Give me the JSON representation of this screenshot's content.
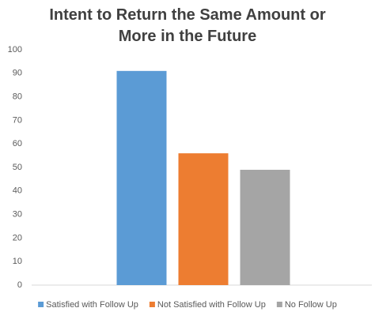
{
  "chart_data": {
    "type": "bar",
    "title": "Intent to Return the Same Amount or More in the Future",
    "categories": [
      null
    ],
    "series": [
      {
        "name": "Satisfied with Follow Up",
        "color": "#5b9bd5",
        "values": [
          91
        ]
      },
      {
        "name": "Not Satisfied with Follow Up",
        "color": "#ed7d31",
        "values": [
          56
        ]
      },
      {
        "name": "No Follow Up",
        "color": "#a5a5a5",
        "values": [
          49
        ]
      }
    ],
    "ylim": [
      0,
      100
    ],
    "yticks": [
      0,
      10,
      20,
      30,
      40,
      50,
      60,
      70,
      80,
      90,
      100
    ],
    "grid": false,
    "legend": "bottom"
  }
}
